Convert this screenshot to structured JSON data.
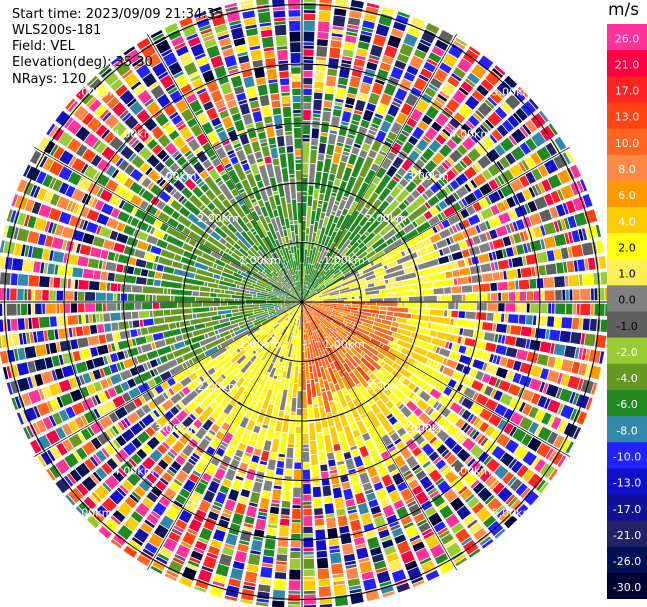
{
  "header": {
    "start_time": "Start time: 2023/09/09 21:34:35",
    "instrument": "WLS200s-181",
    "field": "Field: VEL",
    "elevation": "Elevation(deg): 35.30",
    "nrays": "NRays: 120"
  },
  "colorbar": {
    "units": "m/s",
    "ticks": [
      "26.0",
      "21.0",
      "17.0",
      "13.0",
      "10.0",
      "8.0",
      "6.0",
      "4.0",
      "2.0",
      "1.0",
      "0.0",
      "-1.0",
      "-2.0",
      "-4.0",
      "-6.0",
      "-8.0",
      "-10.0",
      "-13.0",
      "-17.0",
      "-21.0",
      "-26.0",
      "-30.0"
    ],
    "colors": [
      "#ff3399",
      "#ff0044",
      "#ff2222",
      "#ff4411",
      "#ff6622",
      "#ff8844",
      "#ff9900",
      "#ffcc00",
      "#ffff11",
      "#ffee55",
      "#808080",
      "#606060",
      "#99cc33",
      "#669922",
      "#228822",
      "#3388aa",
      "#2222ff",
      "#1111cc",
      "#111199",
      "#222266",
      "#001155",
      "#000033"
    ]
  },
  "chart_data": {
    "type": "ppi",
    "field": "VEL",
    "nrays": 120,
    "range_rings_km": [
      {
        "value": 1,
        "label": "1.00km"
      },
      {
        "value": 2,
        "label": "2.00km"
      },
      {
        "value": 3,
        "label": "3.00km"
      },
      {
        "value": 4,
        "label": "4.00km"
      },
      {
        "value": 5,
        "label": "5.00km"
      }
    ],
    "max_range_km": 5.2,
    "value_range": [
      -30,
      26
    ],
    "units": "m/s",
    "spoke_angles_deg": [
      0,
      30,
      60,
      90,
      120,
      150,
      180,
      210,
      240,
      270,
      300,
      330
    ]
  }
}
